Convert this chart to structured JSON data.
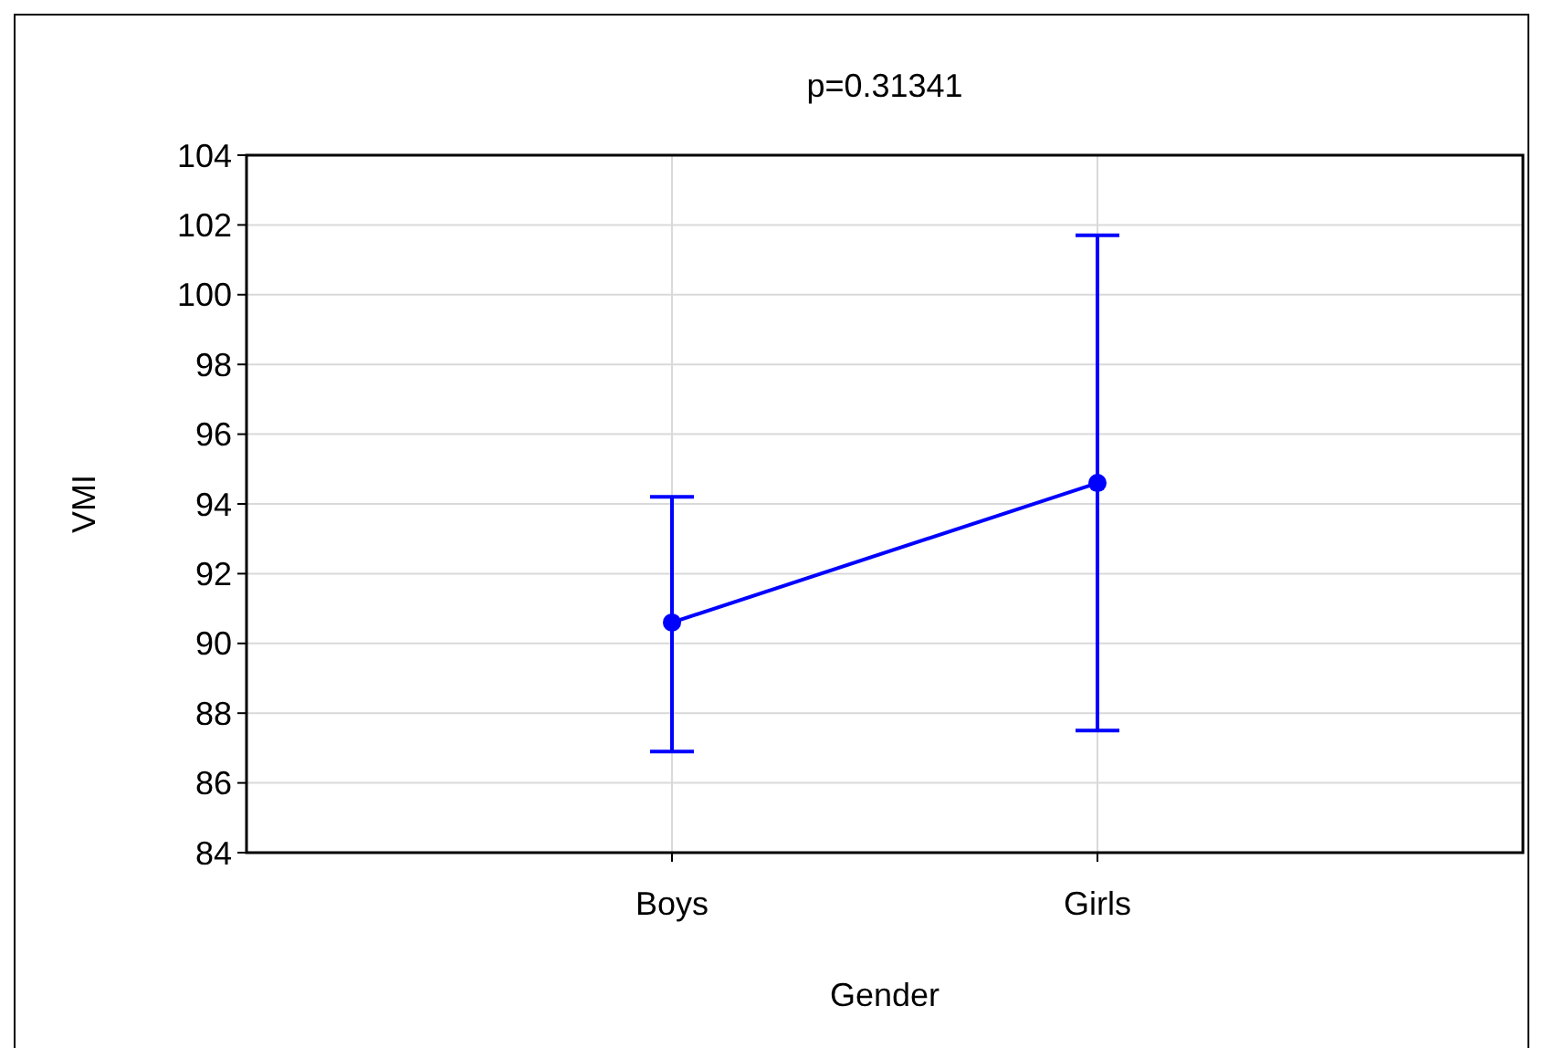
{
  "chart_data": {
    "type": "line",
    "title": "p=0.31341",
    "xlabel": "Gender",
    "ylabel": "VMI",
    "categories": [
      "Boys",
      "Girls"
    ],
    "series": [
      {
        "color": "#0000ff",
        "values": [
          90.6,
          94.6
        ],
        "errors": [
          [
            86.9,
            94.2
          ],
          [
            87.5,
            101.7
          ]
        ]
      }
    ],
    "ylim": [
      84,
      104
    ],
    "yticks": [
      84,
      86,
      88,
      90,
      92,
      94,
      96,
      98,
      100,
      102,
      104
    ],
    "grid": true,
    "marker": "circle",
    "line_style": "solid"
  }
}
